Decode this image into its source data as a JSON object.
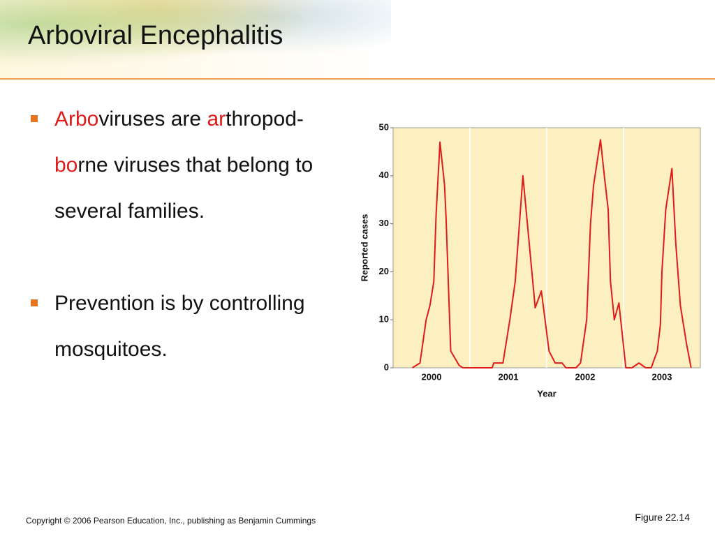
{
  "title": "Arboviral Encephalitis",
  "bullets": [
    {
      "parts": [
        "Arbo",
        "viruses are ",
        "ar",
        "thropod-",
        "bo",
        "rne viruses that belong to several families."
      ]
    },
    {
      "parts": [
        "Prevention is by controlling mosquitoes."
      ]
    }
  ],
  "copyright": "Copyright © 2006 Pearson Education, Inc., publishing as Benjamin Cummings",
  "figure": "Figure 22.14",
  "chart_data": {
    "type": "line",
    "x_label": "Year",
    "y_label": "Reported cases",
    "x": [
      2000.25,
      2000.35,
      2000.43,
      2000.48,
      2000.53,
      2000.56,
      2000.61,
      2000.67,
      2000.69,
      2000.75,
      2000.86,
      2000.91,
      2001.29,
      2001.31,
      2001.43,
      2001.52,
      2001.59,
      2001.69,
      2001.76,
      2001.85,
      2001.93,
      2002.03,
      2002.11,
      2002.2,
      2002.25,
      2002.38,
      2002.44,
      2002.52,
      2002.57,
      2002.61,
      2002.7,
      2002.75,
      2002.8,
      2002.83,
      2002.88,
      2002.94,
      2003.03,
      2003.11,
      2003.2,
      2003.29,
      2003.36,
      2003.44,
      2003.48,
      2003.5,
      2003.55,
      2003.63,
      2003.68,
      2003.74,
      2003.82,
      2003.88
    ],
    "series": [
      {
        "name": "Reported cases",
        "color": "#e01b1b",
        "values": [
          0,
          1,
          10,
          13,
          18,
          32,
          47,
          38,
          31,
          3.5,
          0.5,
          0,
          0,
          1,
          1,
          10,
          18,
          40,
          28,
          12.5,
          16,
          3.5,
          1,
          1,
          0,
          0,
          1,
          10,
          30,
          38,
          47.5,
          40,
          33,
          18,
          10,
          13.5,
          0,
          0,
          1,
          0,
          0,
          3.5,
          9,
          20,
          33,
          41.5,
          26,
          13,
          5,
          0
        ]
      }
    ],
    "xlim": [
      2000,
      2004
    ],
    "xticks": [
      {
        "value": 2000.5,
        "label": "2000"
      },
      {
        "value": 2001.5,
        "label": "2001"
      },
      {
        "value": 2002.5,
        "label": "2002"
      },
      {
        "value": 2003.5,
        "label": "2003"
      }
    ],
    "ylim": [
      0,
      50
    ],
    "yticks": [
      0,
      10,
      20,
      30,
      40,
      50
    ],
    "plot_color": "#fdf0c0"
  }
}
